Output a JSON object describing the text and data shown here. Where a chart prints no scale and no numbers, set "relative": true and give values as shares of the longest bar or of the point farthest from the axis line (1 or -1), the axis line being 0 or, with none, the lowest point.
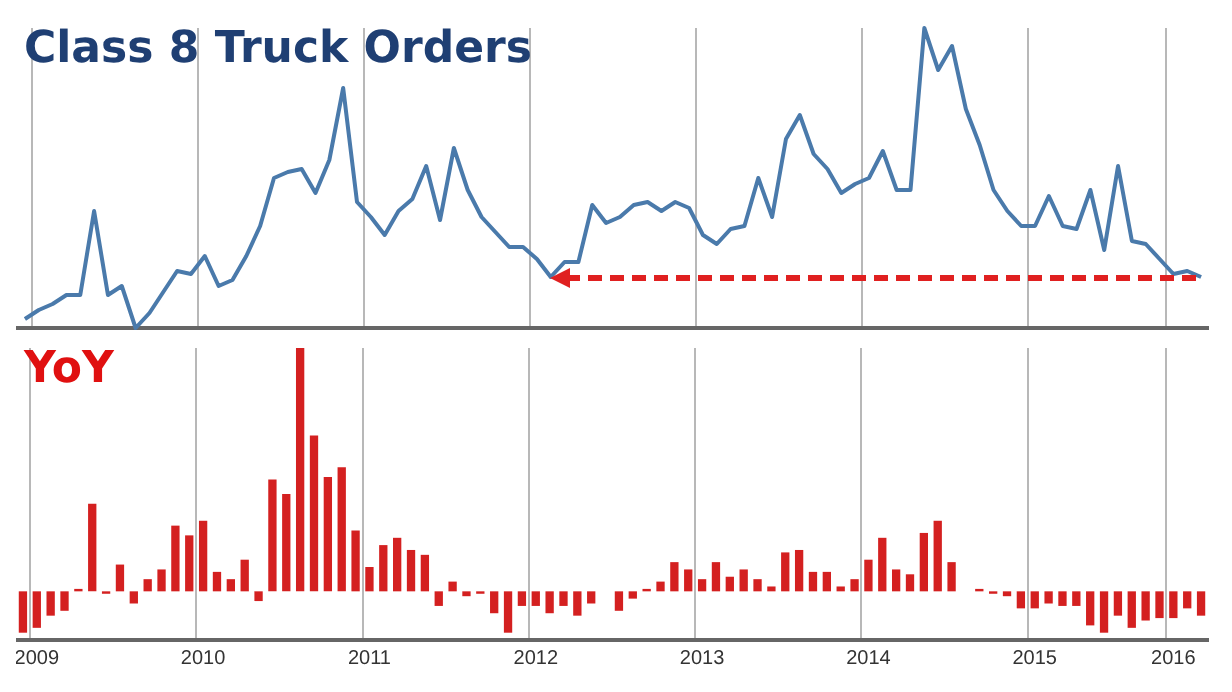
{
  "chart_data": [
    {
      "type": "line",
      "title": "Class 8 Truck Orders",
      "relative": true,
      "grid": "x",
      "tick_labels": false,
      "categories": [
        null,
        "2009",
        null,
        null,
        null,
        null,
        null,
        null,
        null,
        null,
        null,
        null,
        null,
        "2010",
        null,
        null,
        null,
        null,
        null,
        null,
        null,
        null,
        null,
        null,
        null,
        "2011",
        null,
        null,
        null,
        null,
        null,
        null,
        null,
        null,
        null,
        null,
        null,
        "2012",
        null,
        null,
        null,
        null,
        null,
        null,
        null,
        null,
        null,
        null,
        null,
        "2013",
        null,
        null,
        null,
        null,
        null,
        null,
        null,
        null,
        null,
        null,
        null,
        "2014",
        null,
        null,
        null,
        null,
        null,
        null,
        null,
        null,
        null,
        null,
        null,
        "2015",
        null,
        null,
        null,
        null,
        null,
        null,
        null,
        null,
        null,
        "2016",
        null,
        null
      ],
      "values": [
        0.03,
        0.06,
        0.08,
        0.11,
        0.11,
        0.39,
        0.11,
        0.14,
        0,
        0.05,
        0.12,
        0.19,
        0.18,
        0.24,
        0.14,
        0.16,
        0.24,
        0.34,
        0.5,
        0.52,
        0.53,
        0.45,
        0.56,
        0.8,
        0.42,
        0.37,
        0.31,
        0.39,
        0.43,
        0.54,
        0.36,
        0.6,
        0.46,
        0.37,
        0.32,
        0.27,
        0.27,
        0.23,
        0.17,
        0.22,
        0.22,
        0.41,
        0.35,
        0.37,
        0.41,
        0.42,
        0.39,
        0.42,
        0.4,
        0.31,
        0.28,
        0.33,
        0.34,
        0.5,
        0.37,
        0.63,
        0.71,
        0.58,
        0.53,
        0.45,
        0.48,
        0.5,
        0.59,
        0.46,
        0.46,
        1,
        0.86,
        0.94,
        0.73,
        0.61,
        0.46,
        0.39,
        0.34,
        0.34,
        0.44,
        0.34,
        0.33,
        0.46,
        0.26,
        0.54,
        0.29,
        0.28,
        0.23,
        0.18,
        0.19,
        0.17
      ],
      "color": "#4a7aab"
    },
    {
      "type": "bar",
      "title": "YoY",
      "relative": true,
      "grid": "x",
      "tick_labels": "x",
      "categories": [
        null,
        "2009",
        null,
        null,
        null,
        null,
        null,
        null,
        null,
        null,
        null,
        null,
        null,
        "2010",
        null,
        null,
        null,
        null,
        null,
        null,
        null,
        null,
        null,
        null,
        null,
        "2011",
        null,
        null,
        null,
        null,
        null,
        null,
        null,
        null,
        null,
        null,
        null,
        "2012",
        null,
        null,
        null,
        null,
        null,
        null,
        null,
        null,
        null,
        null,
        null,
        "2013",
        null,
        null,
        null,
        null,
        null,
        null,
        null,
        null,
        null,
        null,
        null,
        "2014",
        null,
        null,
        null,
        null,
        null,
        null,
        null,
        null,
        null,
        null,
        null,
        "2015",
        null,
        null,
        null,
        null,
        null,
        null,
        null,
        null,
        null,
        "2016",
        null,
        null
      ],
      "values": [
        -0.17,
        -0.15,
        -0.1,
        -0.08,
        0.01,
        0.36,
        -0.01,
        0.11,
        -0.05,
        0.05,
        0.09,
        0.27,
        0.23,
        0.29,
        0.08,
        0.05,
        0.13,
        -0.04,
        0.46,
        0.4,
        1,
        0.64,
        0.47,
        0.51,
        0.25,
        0.1,
        0.19,
        0.22,
        0.17,
        0.15,
        -0.06,
        0.04,
        -0.02,
        -0.01,
        -0.09,
        -0.17,
        -0.06,
        -0.06,
        -0.09,
        -0.06,
        -0.1,
        -0.05,
        0,
        -0.08,
        -0.03,
        0.01,
        0.04,
        0.12,
        0.09,
        0.05,
        0.12,
        0.06,
        0.09,
        0.05,
        0.02,
        0.16,
        0.17,
        0.08,
        0.08,
        0.02,
        0.05,
        0.13,
        0.22,
        0.09,
        0.07,
        0.24,
        0.29,
        0.12,
        0,
        0.01,
        -0.01,
        -0.02,
        -0.07,
        -0.07,
        -0.05,
        -0.06,
        -0.06,
        -0.14,
        -0.17,
        -0.1,
        -0.15,
        -0.12,
        -0.11,
        -0.11,
        -0.07,
        -0.1
      ],
      "color": "#d42020"
    }
  ]
}
